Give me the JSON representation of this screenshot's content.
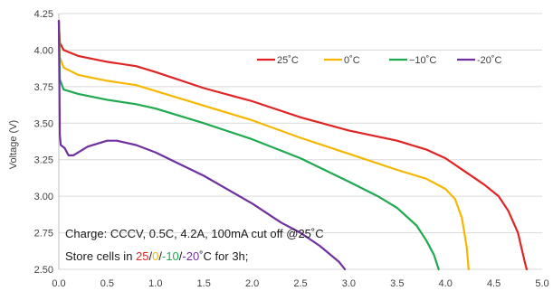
{
  "chart_data": {
    "type": "line",
    "title": "",
    "xlabel": "",
    "ylabel": "Voltage (V)",
    "xlim": [
      0,
      5
    ],
    "ylim": [
      2.5,
      4.25
    ],
    "x_ticks": [
      "0.0",
      "0.5",
      "1.0",
      "1.5",
      "2.0",
      "2.5",
      "3.0",
      "3.5",
      "4.0",
      "4.5",
      "5.0"
    ],
    "y_ticks": [
      "2.50",
      "2.75",
      "3.00",
      "3.25",
      "3.50",
      "3.75",
      "4.00",
      "4.25"
    ],
    "grid": "horizontal",
    "legend_position": "top-right",
    "series": [
      {
        "name": "25˚C",
        "color": "#e02424",
        "points": [
          [
            0,
            4.2
          ],
          [
            0.01,
            4.05
          ],
          [
            0.05,
            4.0
          ],
          [
            0.2,
            3.96
          ],
          [
            0.5,
            3.92
          ],
          [
            0.8,
            3.89
          ],
          [
            1.0,
            3.85
          ],
          [
            1.5,
            3.74
          ],
          [
            2.0,
            3.65
          ],
          [
            2.5,
            3.54
          ],
          [
            3.0,
            3.45
          ],
          [
            3.5,
            3.38
          ],
          [
            3.8,
            3.32
          ],
          [
            4.0,
            3.26
          ],
          [
            4.2,
            3.17
          ],
          [
            4.4,
            3.08
          ],
          [
            4.55,
            3.0
          ],
          [
            4.65,
            2.9
          ],
          [
            4.75,
            2.75
          ],
          [
            4.82,
            2.55
          ],
          [
            4.84,
            2.5
          ]
        ]
      },
      {
        "name": "0˚C",
        "color": "#f5b700",
        "points": [
          [
            0,
            4.2
          ],
          [
            0.01,
            3.95
          ],
          [
            0.05,
            3.88
          ],
          [
            0.2,
            3.83
          ],
          [
            0.5,
            3.79
          ],
          [
            0.8,
            3.76
          ],
          [
            1.0,
            3.72
          ],
          [
            1.5,
            3.62
          ],
          [
            2.0,
            3.52
          ],
          [
            2.5,
            3.4
          ],
          [
            3.0,
            3.29
          ],
          [
            3.5,
            3.18
          ],
          [
            3.8,
            3.12
          ],
          [
            4.0,
            3.05
          ],
          [
            4.1,
            2.98
          ],
          [
            4.17,
            2.85
          ],
          [
            4.22,
            2.65
          ],
          [
            4.24,
            2.5
          ]
        ]
      },
      {
        "name": "−10˚C",
        "color": "#1faa4f",
        "points": [
          [
            0,
            4.2
          ],
          [
            0.01,
            3.8
          ],
          [
            0.05,
            3.73
          ],
          [
            0.2,
            3.7
          ],
          [
            0.5,
            3.66
          ],
          [
            0.8,
            3.63
          ],
          [
            1.0,
            3.6
          ],
          [
            1.5,
            3.5
          ],
          [
            2.0,
            3.39
          ],
          [
            2.5,
            3.26
          ],
          [
            3.0,
            3.1
          ],
          [
            3.3,
            3.0
          ],
          [
            3.5,
            2.92
          ],
          [
            3.7,
            2.8
          ],
          [
            3.8,
            2.7
          ],
          [
            3.88,
            2.6
          ],
          [
            3.93,
            2.5
          ]
        ]
      },
      {
        "name": "-20˚C",
        "color": "#7030a0",
        "points": [
          [
            0,
            4.2
          ],
          [
            0.01,
            3.42
          ],
          [
            0.02,
            3.35
          ],
          [
            0.06,
            3.33
          ],
          [
            0.1,
            3.28
          ],
          [
            0.15,
            3.28
          ],
          [
            0.3,
            3.34
          ],
          [
            0.5,
            3.38
          ],
          [
            0.6,
            3.38
          ],
          [
            0.8,
            3.35
          ],
          [
            1.0,
            3.3
          ],
          [
            1.5,
            3.14
          ],
          [
            2.0,
            2.95
          ],
          [
            2.3,
            2.82
          ],
          [
            2.5,
            2.75
          ],
          [
            2.7,
            2.66
          ],
          [
            2.9,
            2.55
          ],
          [
            2.96,
            2.5
          ]
        ]
      }
    ],
    "annotations": {
      "charge_note": "Charge: CCCV,  0.5C, 4.2A, 100mA cut off @25˚C",
      "store_note": {
        "prefix": "Store cells in ",
        "temps": [
          {
            "text": "25",
            "color": "#e02424"
          },
          {
            "text": "/",
            "color": "#1a1a1a"
          },
          {
            "text": "0",
            "color": "#f5b700"
          },
          {
            "text": "/",
            "color": "#1a1a1a"
          },
          {
            "text": "-10",
            "color": "#1faa4f"
          },
          {
            "text": "/",
            "color": "#1a1a1a"
          },
          {
            "text": "-20",
            "color": "#7030a0"
          }
        ],
        "suffix": "˚C for 3h;"
      }
    }
  }
}
